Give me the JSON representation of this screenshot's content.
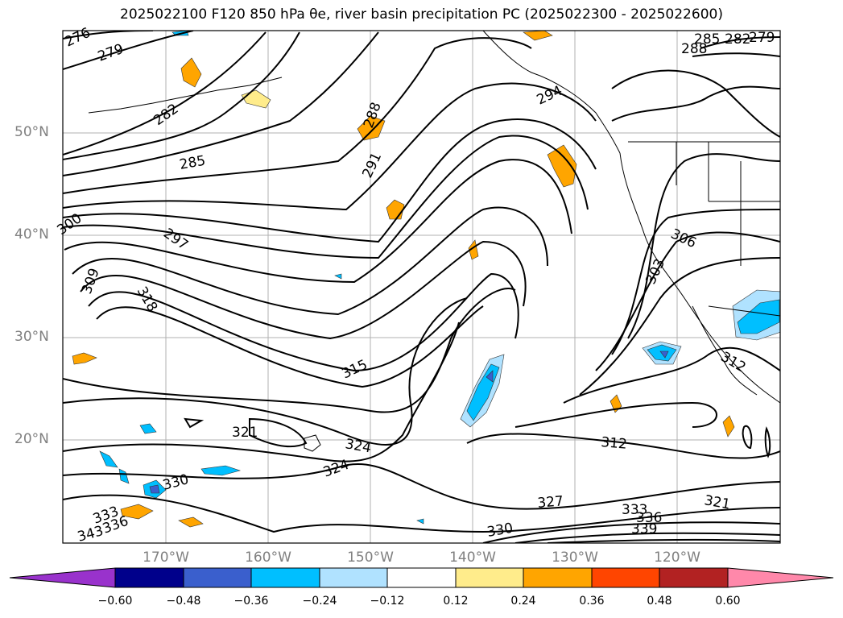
{
  "title": "2025022100 F120 850 hPa θe, river basin precipitation PC (2025022300 - 2025022600)",
  "lat_labels": [
    "50°N",
    "40°N",
    "30°N",
    "20°N"
  ],
  "lon_labels": [
    "170°W",
    "160°W",
    "150°W",
    "140°W",
    "130°W",
    "120°W"
  ],
  "contour_labels": [
    "276",
    "279",
    "282",
    "285",
    "288",
    "291",
    "297",
    "300",
    "309",
    "318",
    "315",
    "321",
    "324",
    "324",
    "330",
    "333",
    "336",
    "339",
    "327",
    "312",
    "321",
    "306",
    "303",
    "312",
    "294",
    "285",
    "288",
    "282",
    "279",
    "333",
    "336",
    "343"
  ],
  "colorbar": {
    "ticks": [
      "−0.60",
      "−0.48",
      "−0.36",
      "−0.24",
      "−0.12",
      "0.12",
      "0.24",
      "0.36",
      "0.48",
      "0.60"
    ],
    "colors": [
      "#9932cc",
      "#00008b",
      "#3a5fcd",
      "#00bfff",
      "#b0e2ff",
      "#ffffff",
      "#ffec8b",
      "#ffa500",
      "#ff4500",
      "#b22222",
      "#ff88aa"
    ]
  }
}
